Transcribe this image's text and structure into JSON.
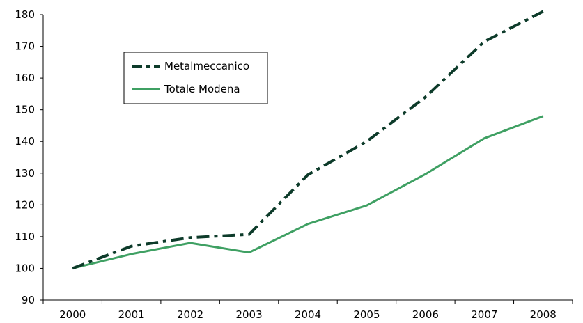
{
  "chart_data": {
    "type": "line",
    "categories": [
      "2000",
      "2001",
      "2002",
      "2003",
      "2004",
      "2005",
      "2006",
      "2007",
      "2008"
    ],
    "series": [
      {
        "name": "Metalmeccanico",
        "values": [
          100,
          107,
          109.7,
          110.7,
          129.5,
          140,
          154,
          171.5,
          181
        ],
        "color": "#0d3b2a",
        "dash": "dash-dot"
      },
      {
        "name": "Totale Modena",
        "values": [
          100,
          104.5,
          108,
          105,
          114,
          119.8,
          129.7,
          141,
          148
        ],
        "color": "#3fa063",
        "dash": "solid"
      }
    ],
    "title": "",
    "xlabel": "",
    "ylabel": "",
    "ylim": [
      90,
      180
    ],
    "yticks": [
      "90",
      "100",
      "110",
      "120",
      "130",
      "140",
      "150",
      "160",
      "170",
      "180"
    ],
    "grid": false,
    "legend": "top-left"
  }
}
